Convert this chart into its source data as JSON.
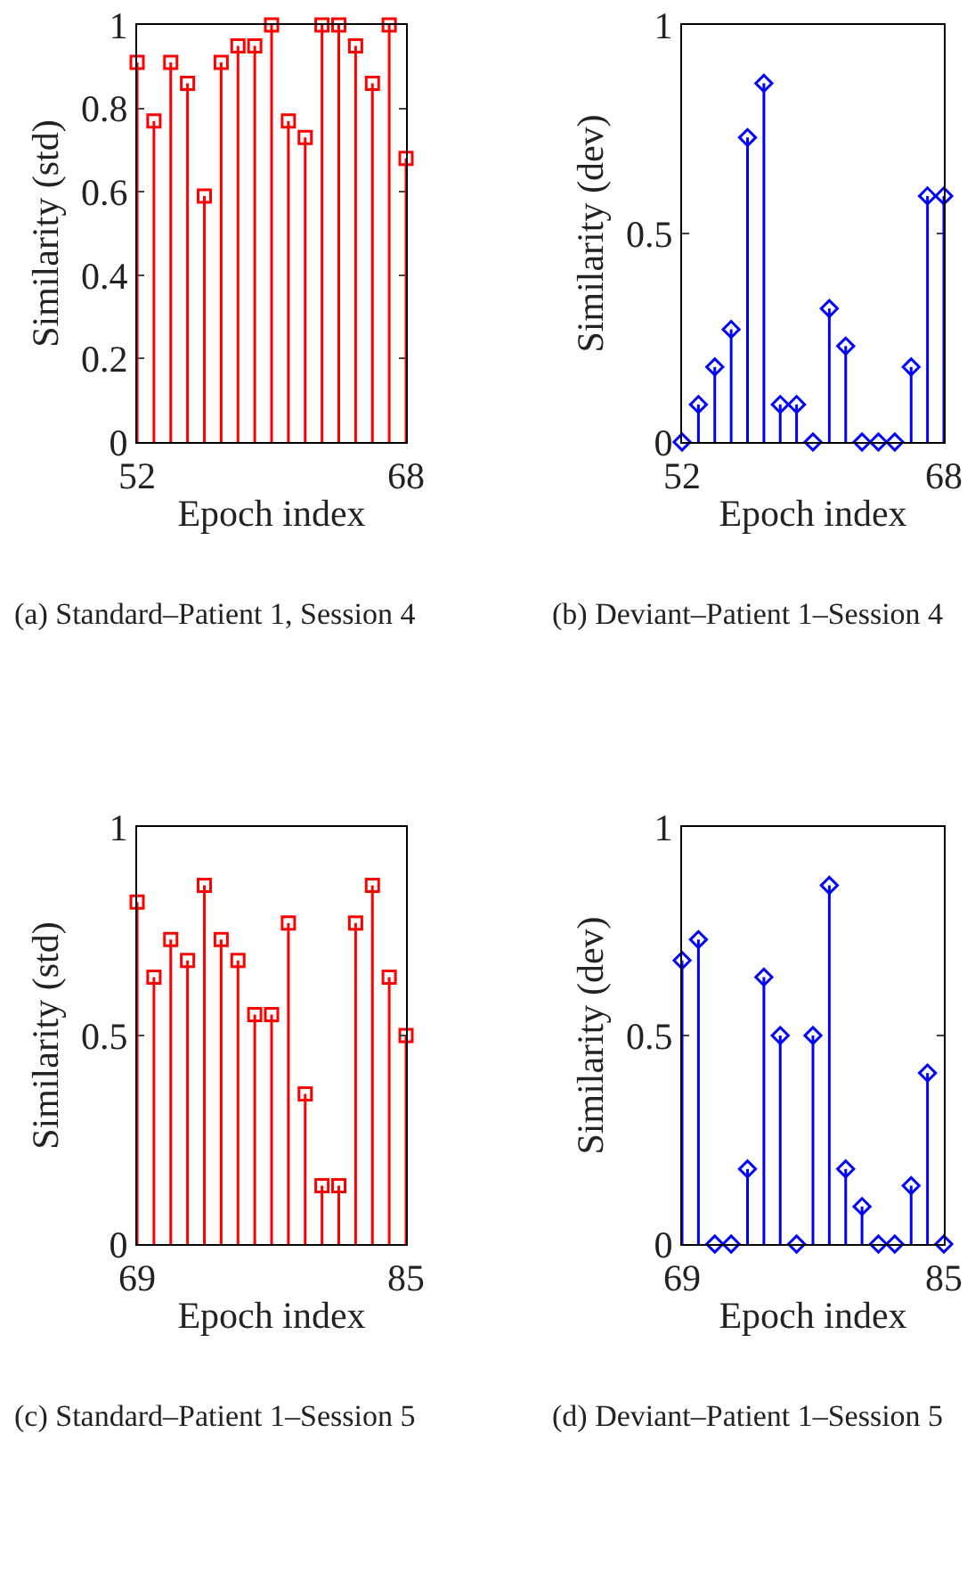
{
  "chart_data": [
    {
      "type": "lollipop",
      "xlabel": "Epoch index",
      "ylabel": "Similarity (std)",
      "marker": "square",
      "grid": false,
      "xlim": [
        52,
        68
      ],
      "xticks": [
        52,
        68
      ],
      "ylim": [
        0,
        1
      ],
      "yticks": [
        0,
        0.2,
        0.4,
        0.6,
        0.8,
        1
      ],
      "annotations": [
        "(a) Standard–Patient 1, Session 4"
      ],
      "x": [
        52,
        53,
        54,
        55,
        56,
        57,
        58,
        59,
        60,
        61,
        62,
        63,
        64,
        65,
        66,
        67,
        68
      ],
      "series": [
        {
          "color": "#ff0000",
          "values": [
            0.91,
            0.77,
            0.91,
            0.86,
            0.59,
            0.91,
            0.95,
            0.95,
            1,
            0.77,
            0.73,
            1,
            1,
            0.95,
            0.86,
            1,
            0.68
          ]
        }
      ]
    },
    {
      "type": "lollipop",
      "xlabel": "Epoch index",
      "ylabel": "Similarity (dev)",
      "marker": "diamond",
      "grid": false,
      "xlim": [
        52,
        68
      ],
      "xticks": [
        52,
        68
      ],
      "ylim": [
        0,
        1
      ],
      "yticks": [
        0,
        0.5,
        1
      ],
      "annotations": [
        "(b) Deviant–Patient 1–Session 4"
      ],
      "x": [
        52,
        53,
        54,
        55,
        56,
        57,
        58,
        59,
        60,
        61,
        62,
        63,
        64,
        65,
        66,
        67,
        68
      ],
      "series": [
        {
          "color": "#0000ff",
          "values": [
            0,
            0.09,
            0.18,
            0.27,
            0.73,
            0.86,
            0.09,
            0.09,
            0,
            0.32,
            0.23,
            0,
            0,
            0,
            0.18,
            0.59,
            0.59
          ]
        }
      ]
    },
    {
      "type": "lollipop",
      "xlabel": "Epoch index",
      "ylabel": "Similarity (std)",
      "marker": "square",
      "grid": false,
      "xlim": [
        69,
        85
      ],
      "xticks": [
        69,
        85
      ],
      "ylim": [
        0,
        1
      ],
      "yticks": [
        0,
        0.5,
        1
      ],
      "annotations": [
        "(c) Standard–Patient 1–Session 5"
      ],
      "x": [
        69,
        70,
        71,
        72,
        73,
        74,
        75,
        76,
        77,
        78,
        79,
        80,
        81,
        82,
        83,
        84,
        85
      ],
      "series": [
        {
          "color": "#ff0000",
          "values": [
            0.82,
            0.64,
            0.73,
            0.68,
            0.86,
            0.73,
            0.68,
            0.55,
            0.55,
            0.77,
            0.36,
            0.14,
            0.14,
            0.77,
            0.86,
            0.64,
            0.5
          ]
        }
      ]
    },
    {
      "type": "lollipop",
      "xlabel": "Epoch index",
      "ylabel": "Similarity (dev)",
      "marker": "diamond",
      "grid": false,
      "xlim": [
        69,
        85
      ],
      "xticks": [
        69,
        85
      ],
      "ylim": [
        0,
        1
      ],
      "yticks": [
        0,
        0.5,
        1
      ],
      "annotations": [
        "(d) Deviant–Patient 1–Session 5"
      ],
      "x": [
        69,
        70,
        71,
        72,
        73,
        74,
        75,
        76,
        77,
        78,
        79,
        80,
        81,
        82,
        83,
        84,
        85
      ],
      "series": [
        {
          "color": "#0000ff",
          "values": [
            0.68,
            0.73,
            0,
            0,
            0.18,
            0.64,
            0.5,
            0,
            0.5,
            0.86,
            0.18,
            0.09,
            0,
            0,
            0.14,
            0.41,
            0
          ]
        }
      ]
    }
  ]
}
